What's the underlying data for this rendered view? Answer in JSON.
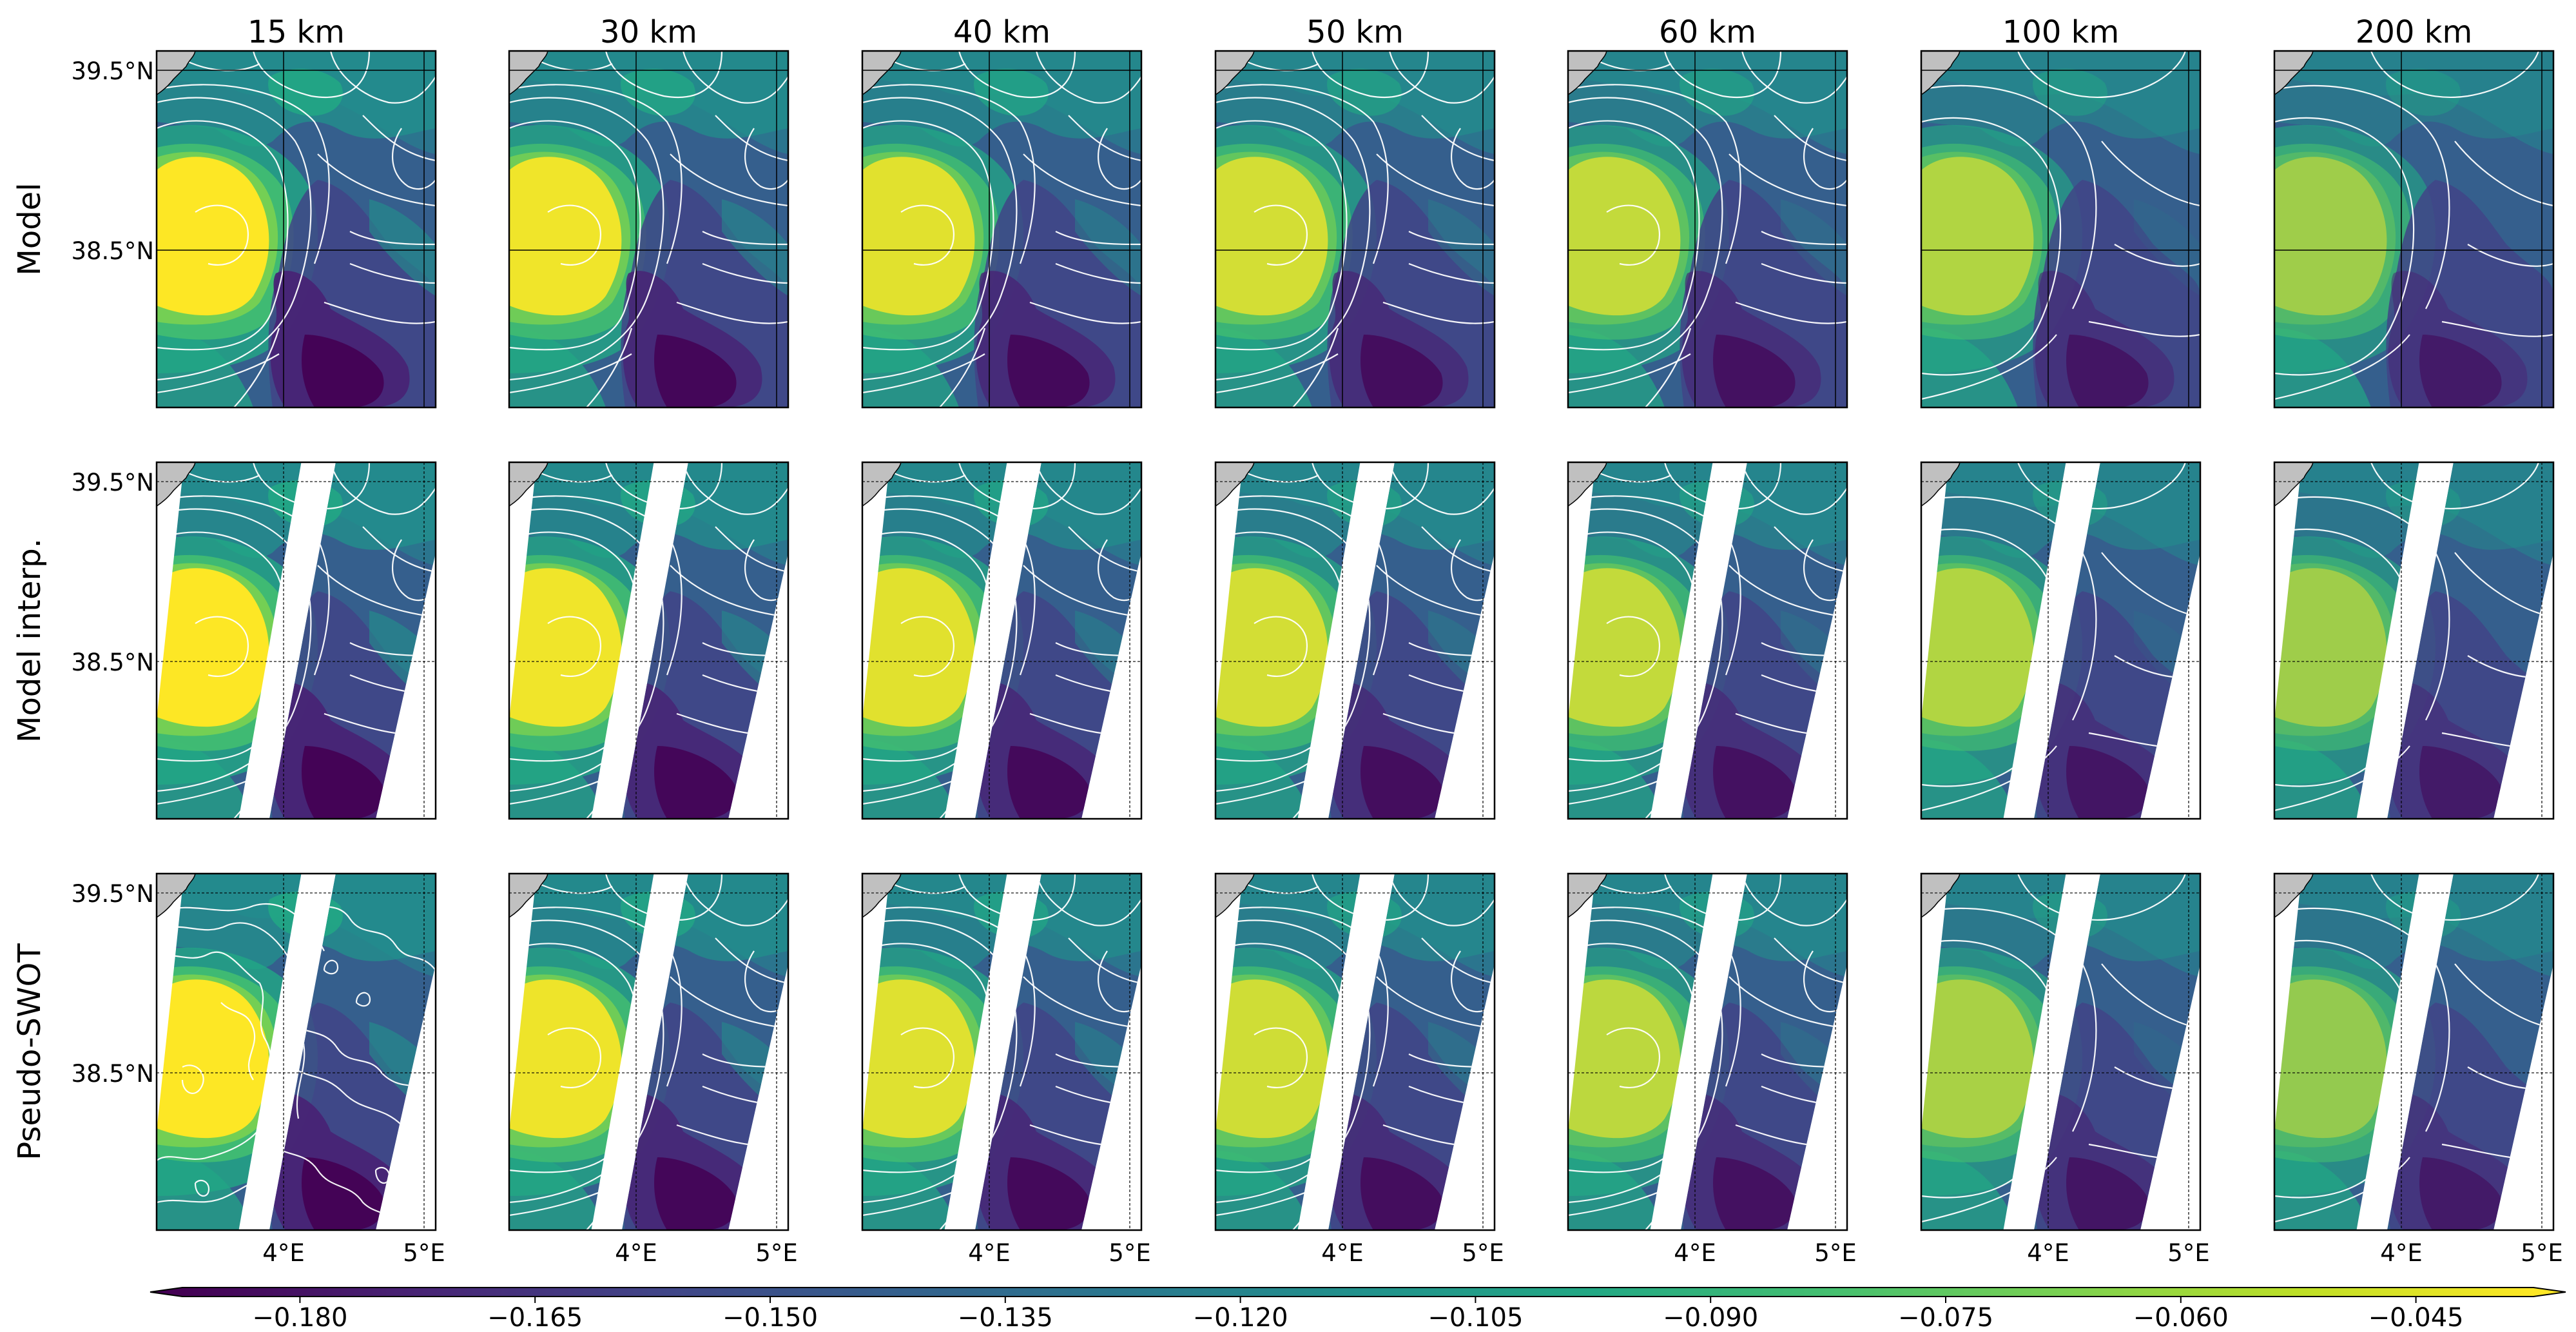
{
  "chart_data": {
    "type": "heatmap",
    "column_titles": [
      "15 km",
      "30 km",
      "40 km",
      "50 km",
      "60 km",
      "100 km",
      "200 km"
    ],
    "row_labels": [
      "Model",
      "Model interp.",
      "Pseudo-SWOT"
    ],
    "lat_ticks": [
      "39.5°N",
      "38.5°N"
    ],
    "lon_ticks": [
      "4°E",
      "5°E"
    ],
    "colorbar": {
      "ticks": [
        "−0.180",
        "−0.165",
        "−0.150",
        "−0.135",
        "−0.120",
        "−0.105",
        "−0.090",
        "−0.075",
        "−0.060",
        "−0.045"
      ],
      "vmin": -0.1875,
      "vmax": -0.0375,
      "colormap": "viridis",
      "extend": "both"
    },
    "contour_color": "#ffffff",
    "land_color": "#c0c0c0",
    "grid": true
  }
}
